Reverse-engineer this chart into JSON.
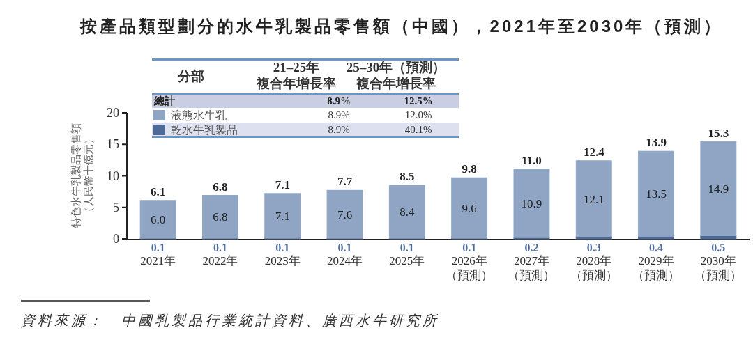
{
  "chart_data": {
    "type": "bar",
    "title": "按產品類型劃分的水牛乳製品零售額（中國），2021年至2030年（預測）",
    "ylabel": "特色水牛乳製品零售額（人民幣十億元）",
    "categories": [
      "2021年",
      "2022年",
      "2023年",
      "2024年",
      "2025年",
      "2026年（預測）",
      "2027年（預測）",
      "2028年（預測）",
      "2029年（預測）",
      "2030年（預測）"
    ],
    "stacked": true,
    "series": [
      {
        "name": "乾水牛乳製品",
        "color": "#4e6a97",
        "values": [
          0.1,
          0.1,
          0.1,
          0.1,
          0.1,
          0.1,
          0.2,
          0.3,
          0.4,
          0.5
        ],
        "value_labels": [
          "0.1",
          "0.1",
          "0.1",
          "0.1",
          "0.1",
          "0.1",
          "0.2",
          "0.3",
          "0.4",
          "0.5"
        ]
      },
      {
        "name": "液態水牛乳",
        "color": "#8fa5c3",
        "values": [
          6.0,
          6.8,
          7.1,
          7.6,
          8.4,
          9.6,
          10.9,
          12.1,
          13.5,
          14.9
        ],
        "value_labels": [
          "6.0",
          "6.8",
          "7.1",
          "7.6",
          "8.4",
          "9.6",
          "10.9",
          "12.1",
          "13.5",
          "14.9"
        ]
      }
    ],
    "totals": [
      "6.1",
      "6.8",
      "7.1",
      "7.7",
      "8.5",
      "9.8",
      "11.0",
      "12.4",
      "13.9",
      "15.3"
    ],
    "ylim": [
      0,
      20
    ],
    "yticks": [
      0,
      5,
      10,
      15,
      20
    ],
    "legend": "top left",
    "annotations": [
      "分部",
      "21–25年",
      "複合年增長率",
      "25–30年（預測）",
      "複合年增長率",
      "總計",
      "8.9%",
      "12.5%",
      "8.9%",
      "12.0%",
      "8.9%",
      "40.1%",
      "資料來源：　中國乳製品行業統計資料、廣西水牛研究所"
    ]
  }
}
